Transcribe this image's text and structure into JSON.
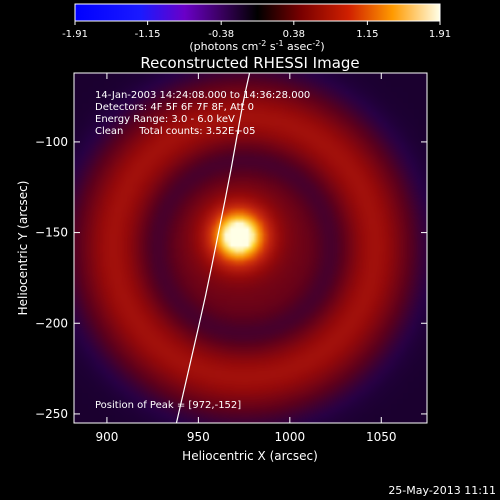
{
  "chart_data": {
    "type": "heatmap",
    "title": "Reconstructed RHESSI Image",
    "xlabel": "Heliocentric X (arcsec)",
    "ylabel": "Heliocentric Y (arcsec)",
    "xlim": [
      882,
      1075
    ],
    "ylim": [
      -255,
      -62
    ],
    "xticks": [
      900,
      950,
      1000,
      1050
    ],
    "yticks": [
      -100,
      -150,
      -200,
      -250
    ],
    "colorbar": {
      "min": -1.91,
      "max": 1.91,
      "ticks": [
        "-1.91",
        "-1.15",
        "-0.38",
        "0.38",
        "1.15",
        "1.91"
      ],
      "label_main": "(photons cm",
      "label_sup1": "-2",
      "label_mid1": " s",
      "label_sup2": "-1",
      "label_mid2": " asec",
      "label_sup3": "-2",
      "label_end": ")"
    },
    "info_lines": [
      "14-Jan-2003 14:24:08.000 to 14:36:28.000",
      "Detectors: 4F 5F 6F 7F 8F, Att 0",
      "Energy Range: 3.0 - 6.0 keV",
      "Clean     Total counts: 3.52E+05"
    ],
    "peak_label": "Position of Peak = [972,-152]",
    "peak": {
      "x": 972,
      "y": -152,
      "value": 1.91
    },
    "limb_curve": [
      [
        938,
        -255
      ],
      [
        946,
        -220
      ],
      [
        954,
        -185
      ],
      [
        961,
        -150
      ],
      [
        968,
        -115
      ],
      [
        974,
        -80
      ],
      [
        978,
        -62
      ]
    ],
    "image_model": {
      "center": [
        975,
        -158
      ],
      "background": 0.55,
      "disk_radius": 95,
      "ring_radius": 72,
      "ring_width": 14,
      "ring_amp": 0.35,
      "inner_dip_radius": 48,
      "inner_dip_amp": -0.25,
      "core_sigma": 12,
      "core_amp": 1.55
    },
    "timestamp": "25-May-2013 11:11"
  }
}
